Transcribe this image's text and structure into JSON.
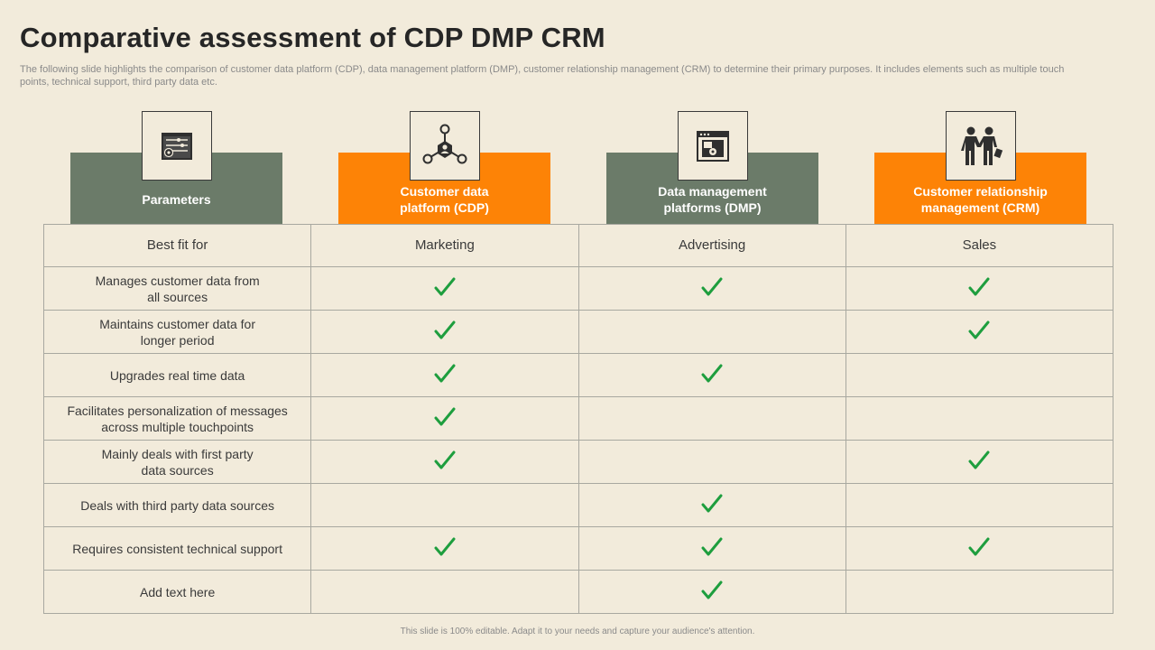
{
  "title": "Comparative assessment of CDP DMP CRM",
  "subtitle": "The following slide highlights the comparison of customer data platform (CDP), data management platform (DMP), customer relationship management (CRM) to determine their primary purposes. It includes elements such as multiple touch points, technical support, third party data etc.",
  "columns": [
    {
      "label": "Parameters",
      "icon": "dashboard-settings-icon",
      "color": "#6b7b69"
    },
    {
      "label": "Customer data\nplatform (CDP)",
      "icon": "network-hub-icon",
      "color": "#fd8306"
    },
    {
      "label": "Data management\nplatforms (DMP)",
      "icon": "browser-window-gear-icon",
      "color": "#6b7b69"
    },
    {
      "label": "Customer relationship\nmanagement (CRM)",
      "icon": "handshake-people-icon",
      "color": "#fd8306"
    }
  ],
  "best_fit": {
    "label": "Best fit for",
    "cdp": "Marketing",
    "dmp": "Advertising",
    "crm": "Sales"
  },
  "rows": [
    {
      "param": "Manages customer data from\nall sources",
      "cdp": true,
      "dmp": true,
      "crm": true
    },
    {
      "param": "Maintains  customer data for\nlonger period",
      "cdp": true,
      "dmp": false,
      "crm": true
    },
    {
      "param": "Upgrades real time data",
      "cdp": true,
      "dmp": true,
      "crm": false
    },
    {
      "param": "Facilitates personalization of messages\nacross multiple touchpoints",
      "cdp": true,
      "dmp": false,
      "crm": false
    },
    {
      "param": "Mainly deals with first party\ndata sources",
      "cdp": true,
      "dmp": false,
      "crm": true
    },
    {
      "param": "Deals with third party data sources",
      "cdp": false,
      "dmp": true,
      "crm": false
    },
    {
      "param": "Requires consistent technical support",
      "cdp": true,
      "dmp": true,
      "crm": true
    },
    {
      "param": "Add text here",
      "cdp": false,
      "dmp": true,
      "crm": false
    }
  ],
  "check_color": "#1e9e3e",
  "footer": "This slide is 100% editable.  Adapt it to your needs and capture your audience's attention."
}
